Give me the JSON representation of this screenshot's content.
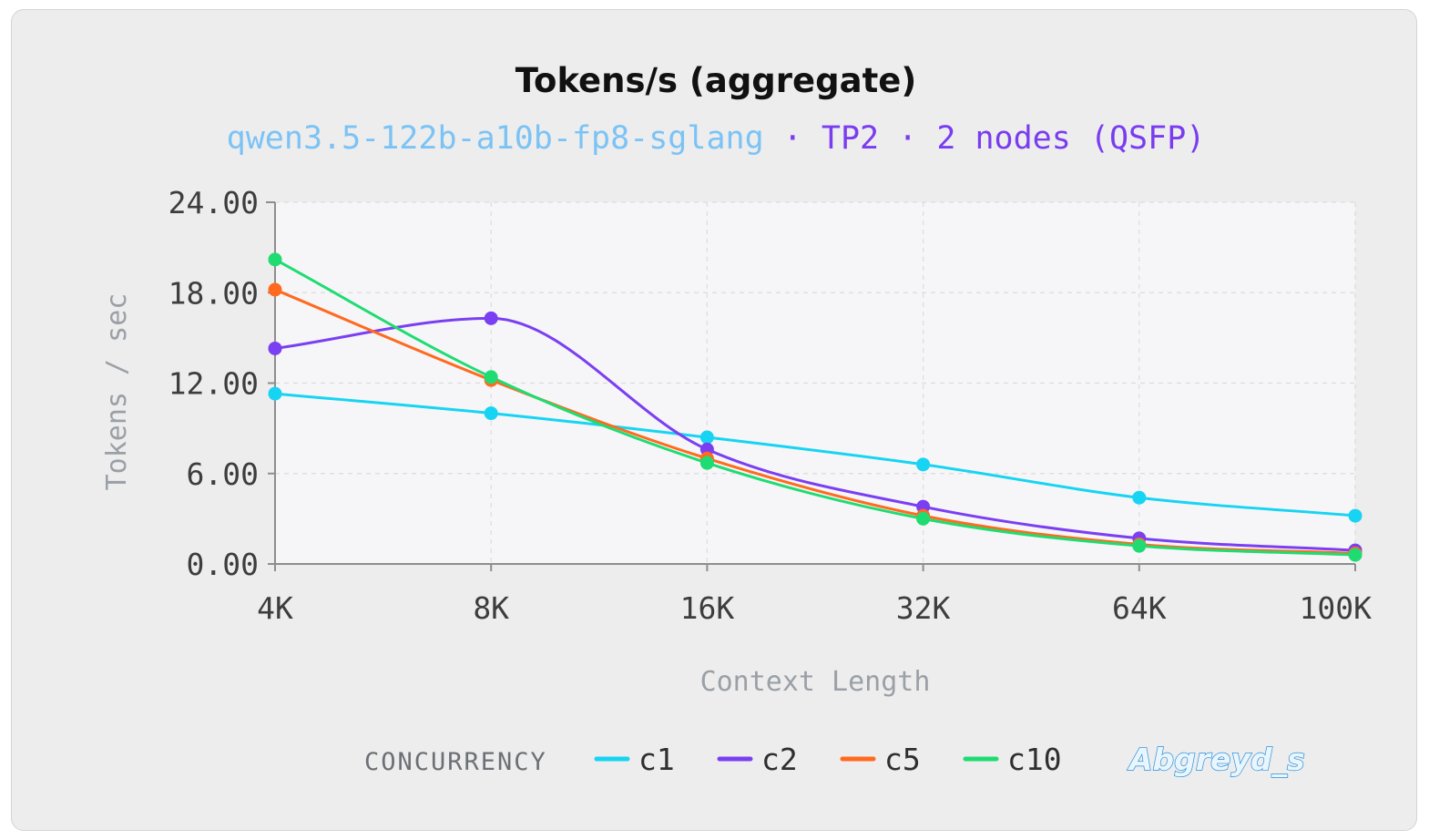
{
  "chart_data": {
    "type": "line",
    "title": "Tokens/s (aggregate)",
    "subtitle": {
      "model": "qwen3.5-122b-a10b-fp8-sglang",
      "separator1": " · ",
      "tp": "TP2",
      "separator2": " · ",
      "nodes": "2 nodes (QSFP)",
      "model_color": "#7cc3f5",
      "detail_color": "#7a3cf0"
    },
    "xlabel": "Context Length",
    "ylabel": "Tokens / sec",
    "categories": [
      "4K",
      "8K",
      "16K",
      "32K",
      "64K",
      "100K"
    ],
    "yticks": [
      "0.00",
      "6.00",
      "12.00",
      "18.00",
      "24.00"
    ],
    "ylim": [
      0,
      24
    ],
    "grid": true,
    "legend_title": "CONCURRENCY",
    "legend_position": "bottom",
    "series": [
      {
        "name": "c1",
        "color": "#17d4f2",
        "values": [
          11.3,
          10.0,
          8.4,
          6.6,
          4.4,
          3.2
        ]
      },
      {
        "name": "c2",
        "color": "#7b3ff2",
        "values": [
          14.3,
          16.3,
          7.6,
          3.8,
          1.7,
          0.9
        ]
      },
      {
        "name": "c5",
        "color": "#ff6a1f",
        "values": [
          18.2,
          12.2,
          7.0,
          3.2,
          1.3,
          0.7
        ]
      },
      {
        "name": "c10",
        "color": "#1fdc72",
        "values": [
          20.2,
          12.4,
          6.7,
          3.0,
          1.2,
          0.6
        ]
      }
    ]
  },
  "watermark": "Abgreyd_s"
}
